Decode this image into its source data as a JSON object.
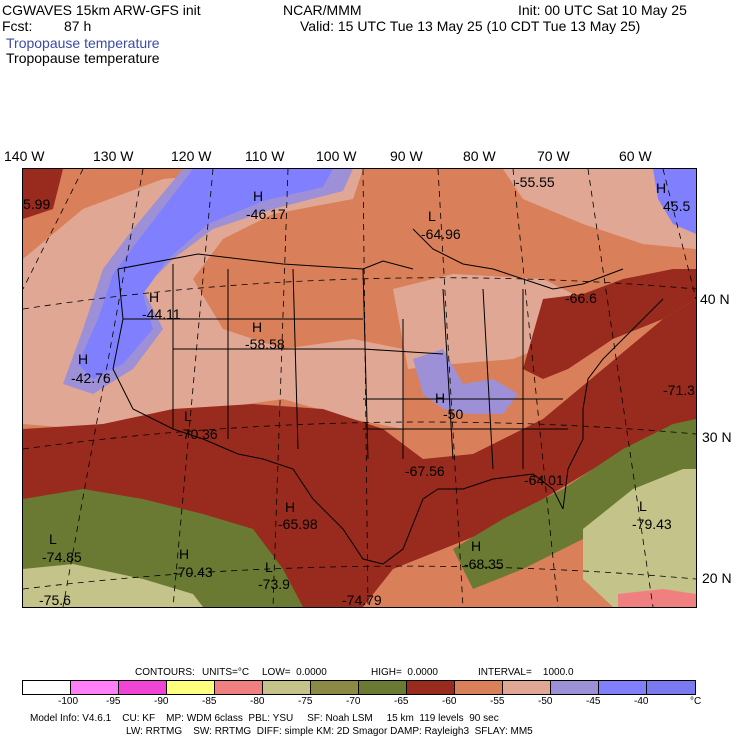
{
  "header": {
    "model": "CGWAVES 15km ARW-GFS init",
    "org": "NCAR/MMM",
    "init": "Init: 00 UTC Sat 10 May 25",
    "fcst_label": "Fcst:",
    "fcst_value": "87 h",
    "valid": "Valid: 15 UTC Tue 13 May 25 (10 CDT Tue 13 May 25)",
    "field_title_1": "Tropopause temperature",
    "field_title_2": "Tropopause temperature"
  },
  "longitudes": [
    "140 W",
    "130 W",
    "120 W",
    "110 W",
    "100 W",
    "90 W",
    "80 W",
    "70 W",
    "60 W"
  ],
  "latitudes": [
    "40 N",
    "30 N",
    "20 N"
  ],
  "centers": [
    {
      "type": "H",
      "value": "-46.17"
    },
    {
      "type": "",
      "value": "-55.55"
    },
    {
      "type": "L",
      "value": "-64.96"
    },
    {
      "type": "H",
      "value": "-44.11"
    },
    {
      "type": "H",
      "value": "-58.58"
    },
    {
      "type": "H",
      "value": "-42.76"
    },
    {
      "type": "L",
      "value": "-70.36"
    },
    {
      "type": "",
      "value": "-67.56"
    },
    {
      "type": "",
      "value": "-64.01"
    },
    {
      "type": "H",
      "value": "-65.98"
    },
    {
      "type": "L",
      "value": "-79.43"
    },
    {
      "type": "L",
      "value": "-74.85"
    },
    {
      "type": "H",
      "value": "-70.43"
    },
    {
      "type": "L",
      "value": "-73.9"
    },
    {
      "type": "H",
      "value": "-68.35"
    },
    {
      "type": "",
      "value": "-74.79"
    },
    {
      "type": "",
      "value": "-71.3"
    },
    {
      "type": "H",
      "value": "-50"
    },
    {
      "type": "",
      "value": "-66.6"
    },
    {
      "type": "",
      "value": "5.99"
    },
    {
      "type": "H",
      "value": "45.5"
    },
    {
      "type": "",
      "value": "-75.6"
    }
  ],
  "contours": {
    "label": "CONTOURS:",
    "units": "UNITS=°C",
    "low": "LOW=  0.0000",
    "high": "HIGH=  0.0000",
    "interval": "INTERVAL=    1000.0"
  },
  "colorbar": {
    "colors": [
      "#ffffff",
      "#ff7ff7",
      "#f044d6",
      "#ffff7f",
      "#f08080",
      "#c3c38a",
      "#8a8a44",
      "#6b7a33",
      "#992a1e",
      "#d9805a",
      "#e0a894",
      "#9d90d6",
      "#8080ff",
      "#7a7af0"
    ],
    "labels": [
      "-100",
      "-95",
      "-90",
      "-85",
      "-80",
      "-75",
      "-70",
      "-65",
      "-60",
      "-55",
      "-50",
      "-45",
      "-40",
      "°C"
    ]
  },
  "footer": {
    "line1": "Model Info: V4.6.1    CU: KF    MP: WDM 6class  PBL: YSU     SF: Noah LSM     15 km  119 levels  90 sec",
    "line2": "LW: RRTMG    SW: RRTMG  DIFF: simple KM: 2D Smagor DAMP: Rayleigh3  SFLAY: MM5"
  }
}
